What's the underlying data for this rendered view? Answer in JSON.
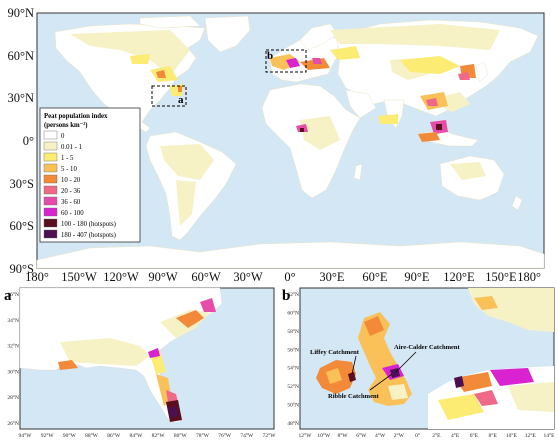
{
  "main_map": {
    "lat_ticks": [
      "90°N",
      "60°N",
      "30°N",
      "0°",
      "30°S",
      "60°S",
      "90°S"
    ],
    "lon_ticks": [
      "180°",
      "150°W",
      "120°W",
      "90°W",
      "60°W",
      "30°W",
      "0°",
      "30°E",
      "60°E",
      "90°E",
      "120°E",
      "150°E",
      "180°"
    ],
    "box_a_label": "a",
    "box_b_label": "b"
  },
  "legend": {
    "title_line1": "Peat population index",
    "title_line2": "(persons km⁻²)",
    "classes": [
      {
        "label": "0",
        "color": "#ffffff"
      },
      {
        "label": "0.01 - 1",
        "color": "#f7f1c6"
      },
      {
        "label": "1 - 5",
        "color": "#fcec73"
      },
      {
        "label": "5 - 10",
        "color": "#f9c158"
      },
      {
        "label": "10 - 20",
        "color": "#f28a3a"
      },
      {
        "label": "20 - 36",
        "color": "#ee6a88"
      },
      {
        "label": "36 - 60",
        "color": "#e64ca9"
      },
      {
        "label": "60 - 100",
        "color": "#d923d0"
      },
      {
        "label": "100 - 180 (hotspots)",
        "color": "#5a0f1e"
      },
      {
        "label": "180 - 407 (hotspots)",
        "color": "#4c0f52"
      }
    ]
  },
  "inset_a": {
    "letter": "a",
    "lat_ticks": [
      "36°N",
      "34°N",
      "32°N",
      "30°N",
      "28°N",
      "26°N"
    ],
    "lon_ticks": [
      "94°W",
      "92°W",
      "90°W",
      "88°W",
      "86°W",
      "84°W",
      "82°W",
      "80°W",
      "78°W",
      "76°W",
      "74°W",
      "72°W"
    ]
  },
  "inset_b": {
    "letter": "b",
    "lat_ticks": [
      "62°N",
      "60°N",
      "58°N",
      "56°N",
      "54°N",
      "52°N",
      "50°N",
      "48°N"
    ],
    "lon_ticks": [
      "12°W",
      "10°W",
      "8°W",
      "6°W",
      "4°W",
      "2°W",
      "0°",
      "2°E",
      "4°E",
      "6°E",
      "8°E",
      "10°E",
      "12°E",
      "14°E"
    ],
    "callouts": {
      "liffey": "Liffey Catchment",
      "aire_calder": "Aire-Calder Catchment",
      "ribble": "Ribble Catchment"
    }
  },
  "colors": {
    "ocean": "#d4e7f5",
    "land": "#ffffff",
    "frame": "#333333"
  }
}
